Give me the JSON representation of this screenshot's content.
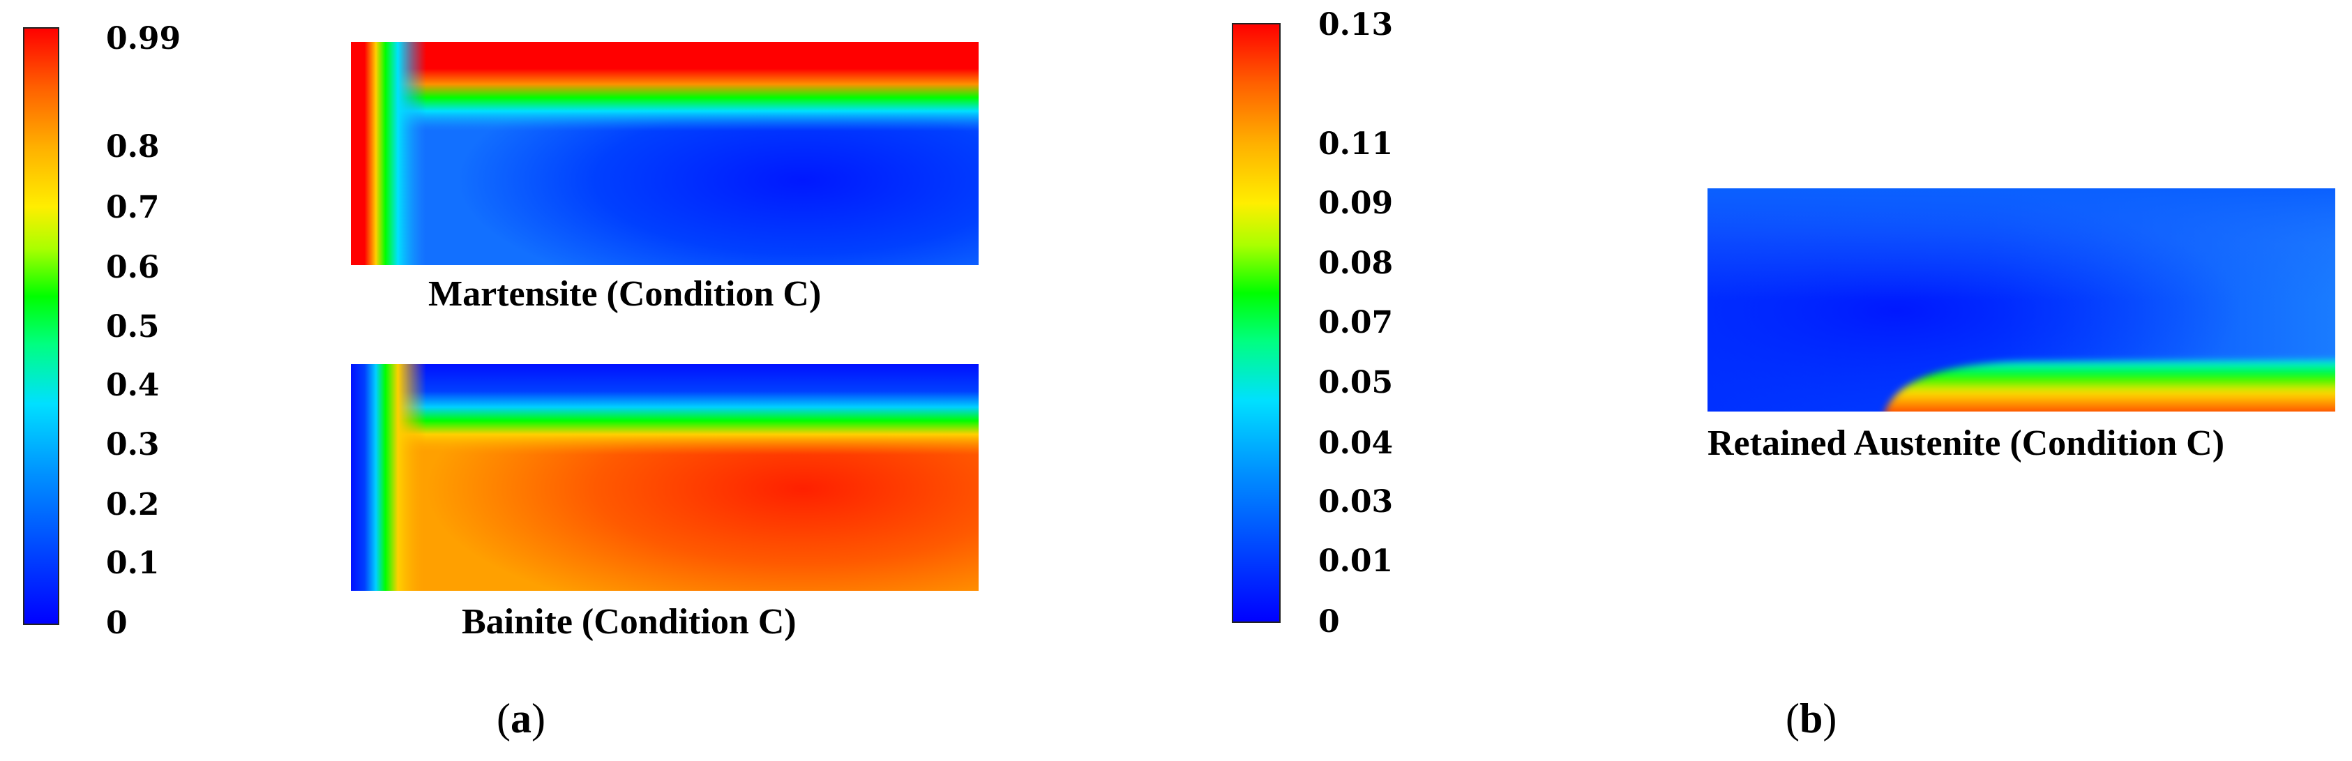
{
  "colorbar_a": {
    "ticks": [
      "0.99",
      "0.8",
      "0.7",
      "0.6",
      "0.5",
      "0.4",
      "0.3",
      "0.2",
      "0.1",
      "0"
    ],
    "colors": [
      "#ff0000",
      "#ff8000",
      "#ffd700",
      "#ffff00",
      "#00ff00",
      "#00ffff",
      "#0080ff",
      "#0000ff"
    ]
  },
  "colorbar_b": {
    "ticks": [
      "0.13",
      "0.11",
      "0.09",
      "0.08",
      "0.07",
      "0.05",
      "0.04",
      "0.03",
      "0.01",
      "0"
    ]
  },
  "captions": {
    "martensite": "Martensite (Condition C)",
    "bainite": "Bainite (Condition C)",
    "retained": "Retained Austenite (Condition C)"
  },
  "panels": {
    "a": {
      "open": "(",
      "letter": "a",
      "close": ")"
    },
    "b": {
      "open": "(",
      "letter": "b",
      "close": ")"
    }
  }
}
